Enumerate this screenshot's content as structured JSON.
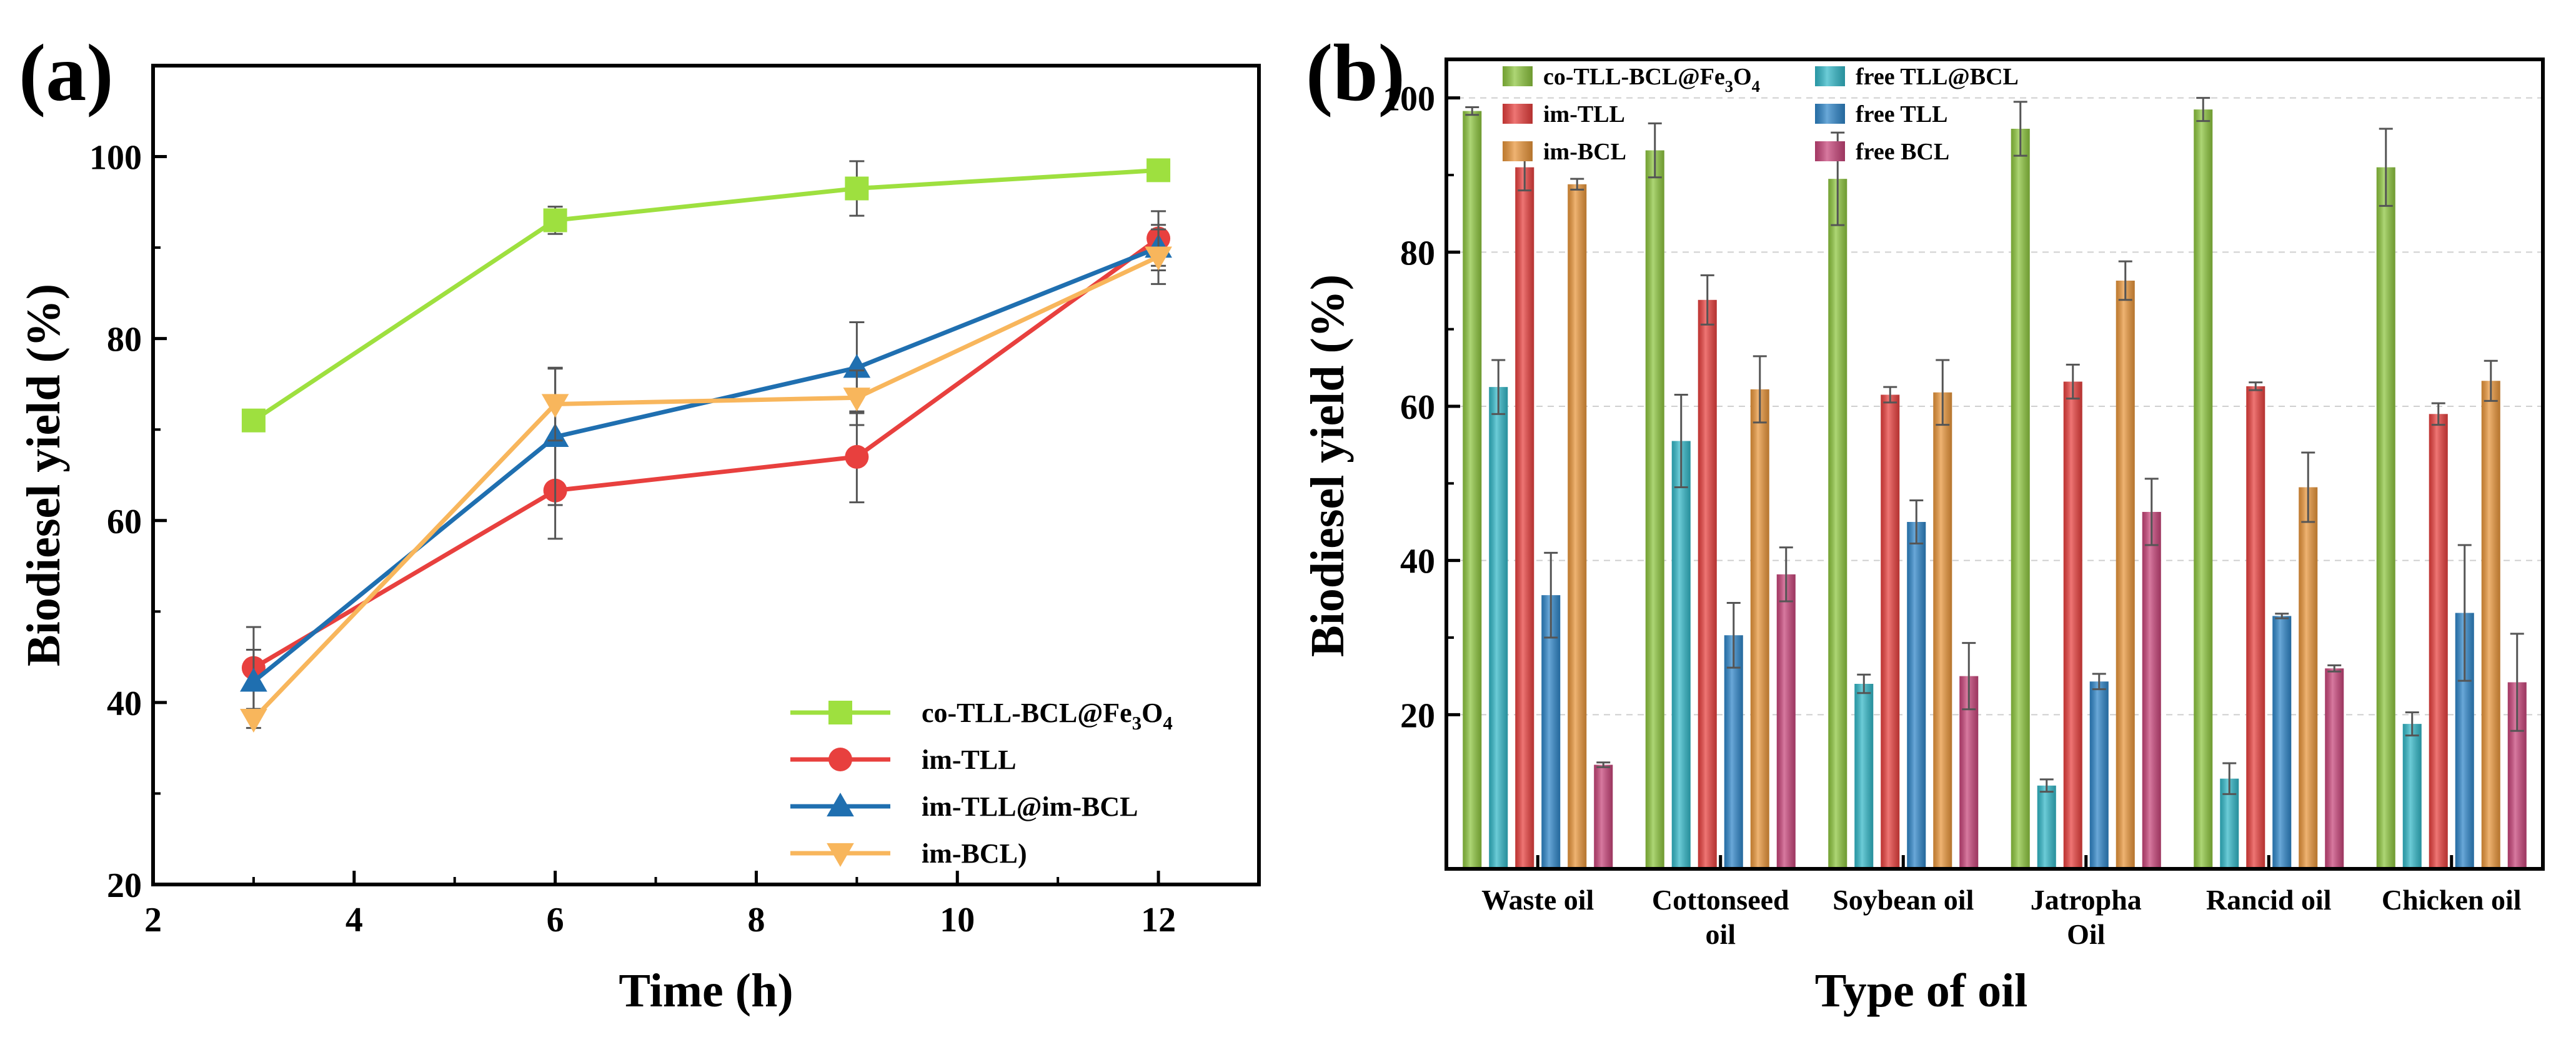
{
  "chart_data": [
    {
      "panel": "(a)",
      "type": "line",
      "xlabel": "Time (h)",
      "ylabel": "Biodiesel yield (%)",
      "xlim": [
        2,
        13
      ],
      "ylim": [
        20,
        110
      ],
      "xticks": [
        "2",
        "4",
        "6",
        "8",
        "10",
        "12"
      ],
      "yticks": [
        "20",
        "40",
        "60",
        "80",
        "100"
      ],
      "x": [
        3,
        6,
        9,
        12
      ],
      "legend_position": "bottom-right",
      "series": [
        {
          "name": "co-TLL-BCL@Fe",
          "sub1": "3",
          "mid": "O",
          "sub2": "4",
          "values": [
            71,
            93,
            96.5,
            98.5
          ],
          "errors": [
            0.5,
            1.5,
            3,
            0.5
          ],
          "color": "#9ee03f",
          "marker": "square"
        },
        {
          "name": "im-TLL",
          "values": [
            43.8,
            63.3,
            67,
            91
          ],
          "errors": [
            4.5,
            5.3,
            5,
            3
          ],
          "color": "#e8403e",
          "marker": "circle"
        },
        {
          "name": "im-TLL@im-BCL",
          "values": [
            42.3,
            69.2,
            76.8,
            90
          ],
          "errors": [
            3.5,
            7.5,
            5,
            2.5
          ],
          "color": "#1f6fb0",
          "marker": "triangle-up"
        },
        {
          "name": "im-BCL)",
          "values": [
            38.2,
            72.8,
            73.5,
            89
          ],
          "errors": [
            1,
            4,
            3,
            3
          ],
          "color": "#f8b65c",
          "marker": "triangle-down"
        }
      ]
    },
    {
      "panel": "(b)",
      "type": "bar",
      "xlabel": "Type of oil",
      "ylabel": "Biodiesel yield (%)",
      "ylim": [
        0,
        105
      ],
      "yticks": [
        "20",
        "40",
        "60",
        "80",
        "100"
      ],
      "grid_y": [
        20,
        40,
        60,
        80,
        100
      ],
      "categories": [
        [
          "Waste oil"
        ],
        [
          "Cottonseed",
          "oil"
        ],
        [
          "Soybean oil"
        ],
        [
          "Jatropha",
          "Oil"
        ],
        [
          "Rancid oil"
        ],
        [
          "Chicken oil"
        ]
      ],
      "legend_position": "top",
      "series": [
        {
          "name": "co-TLL-BCL@Fe",
          "sub1": "3",
          "mid": "O",
          "sub2": "4",
          "color": "#8ec63f",
          "values": [
            98.3,
            93.2,
            89.5,
            96,
            98.5,
            91
          ],
          "errors": [
            0.5,
            3.5,
            6,
            3.5,
            1.5,
            5
          ]
        },
        {
          "name": "free TLL@BCL",
          "color": "#33b8c8",
          "values": [
            62.5,
            55.5,
            24,
            10.8,
            11.7,
            18.8
          ],
          "errors": [
            3.5,
            6,
            1.2,
            0.8,
            2,
            1.5
          ]
        },
        {
          "name": "im-TLL",
          "color": "#e8403e",
          "values": [
            91,
            73.8,
            61.5,
            63.2,
            62.6,
            59
          ],
          "errors": [
            3,
            3.2,
            1,
            2.2,
            0.5,
            1.4
          ]
        },
        {
          "name": "free TLL",
          "color": "#2f86c9",
          "values": [
            35.5,
            30.3,
            45,
            24.3,
            32.8,
            33.2
          ],
          "errors": [
            5.5,
            4.2,
            2.8,
            1,
            0.3,
            8.8
          ]
        },
        {
          "name": "im-BCL",
          "color": "#e9963b",
          "values": [
            88.8,
            62.2,
            61.8,
            76.3,
            49.5,
            63.3
          ],
          "errors": [
            0.7,
            4.3,
            4.2,
            2.5,
            4.5,
            2.6
          ]
        },
        {
          "name": "free BCL",
          "color": "#c8457a",
          "values": [
            13.5,
            38.2,
            25,
            46.3,
            26,
            24.2
          ],
          "errors": [
            0.3,
            3.5,
            4.3,
            4.3,
            0.4,
            6.3
          ]
        }
      ]
    }
  ]
}
